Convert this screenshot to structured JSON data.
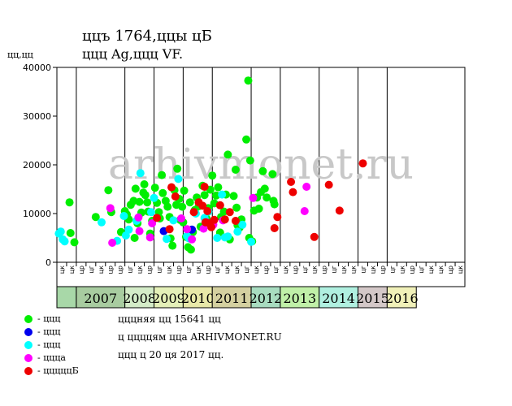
{
  "header": {
    "title_line1": "ццъ 1764,ццы цБ",
    "title_line2": "ццц Ag,ццц VF.",
    "y_unit": "цц,цц"
  },
  "watermark": "arhivmonet.ru",
  "legend": [
    {
      "label": "- ццц",
      "color": "#00ee00"
    },
    {
      "label": "- ццц",
      "color": "#0000ee"
    },
    {
      "label": "- ццц",
      "color": "#00ffff"
    },
    {
      "label": "- ццца",
      "color": "#ff00ff"
    },
    {
      "label": "- цццццБ",
      "color": "#ee0000"
    }
  ],
  "info": [
    "цццняя цц 15641 цц",
    "ц ццццям цца ARHIVMONET.RU",
    "ццц ц 20 ця 2017 цц."
  ],
  "chart_data": {
    "type": "scatter",
    "title": "ццъ 1764,ццы цБ — ццц Ag,ццц VF.",
    "ylabel": "цц,цц",
    "ylim": [
      0,
      40000
    ],
    "yticks": [
      0,
      10000,
      20000,
      30000,
      40000
    ],
    "x_range": [
      0,
      42
    ],
    "x_periods": [
      {
        "label": "",
        "start": 0,
        "end": 2,
        "color": "#a8d8a8"
      },
      {
        "label": "2007",
        "start": 2,
        "end": 7,
        "color": "#a8cca0"
      },
      {
        "label": "2008",
        "start": 7,
        "end": 10,
        "color": "#d4ecc8"
      },
      {
        "label": "2009",
        "start": 10,
        "end": 13,
        "color": "#e4f0b8"
      },
      {
        "label": "2010",
        "start": 13,
        "end": 16,
        "color": "#e8e8a8"
      },
      {
        "label": "2011",
        "start": 16,
        "end": 20,
        "color": "#d4d0a0"
      },
      {
        "label": "2012",
        "start": 20,
        "end": 23,
        "color": "#a8dcc0"
      },
      {
        "label": "2013",
        "start": 23,
        "end": 27,
        "color": "#c0f0a8"
      },
      {
        "label": "2014",
        "start": 27,
        "end": 31,
        "color": "#b0f0e0"
      },
      {
        "label": "2015",
        "start": 31,
        "end": 34,
        "color": "#d4c8c8"
      },
      {
        "label": "2016",
        "start": 34,
        "end": 37,
        "color": "#f0f0b8"
      }
    ],
    "x_subticks": [
      "цк",
      "цк",
      "цр",
      "цг",
      "цк",
      "цр",
      "цр",
      "цг",
      "цк",
      "цр",
      "цг",
      "цк",
      "цр",
      "цг",
      "цк",
      "цр",
      "цг",
      "цк",
      "цк",
      "цг",
      "цк",
      "цр",
      "цг",
      "цк",
      "цр",
      "цг",
      "цк",
      "цр",
      "цг",
      "цк",
      "цк",
      "цг",
      "цк",
      "цр",
      "цг",
      "цк",
      "цр",
      "цг",
      "цк",
      "цк",
      "цр",
      "цк"
    ],
    "series": [
      {
        "name": "- ццц",
        "color": "#00ee00",
        "points": [
          [
            1.3,
            12300
          ],
          [
            1.4,
            6000
          ],
          [
            1.8,
            4100
          ],
          [
            4.0,
            9300
          ],
          [
            5.3,
            14800
          ],
          [
            5.6,
            10300
          ],
          [
            6.6,
            6200
          ],
          [
            7.0,
            10500
          ],
          [
            7.2,
            9800
          ],
          [
            7.4,
            8800
          ],
          [
            7.6,
            11800
          ],
          [
            7.9,
            12600
          ],
          [
            8.0,
            5000
          ],
          [
            8.1,
            15100
          ],
          [
            8.3,
            8000
          ],
          [
            8.5,
            12400
          ],
          [
            8.7,
            10200
          ],
          [
            8.9,
            14300
          ],
          [
            9.0,
            16000
          ],
          [
            9.1,
            13800
          ],
          [
            9.3,
            12300
          ],
          [
            9.4,
            10400
          ],
          [
            9.6,
            5900
          ],
          [
            9.8,
            8500
          ],
          [
            10.1,
            15300
          ],
          [
            10.3,
            12200
          ],
          [
            10.5,
            10300
          ],
          [
            10.6,
            9000
          ],
          [
            10.8,
            17900
          ],
          [
            10.9,
            14200
          ],
          [
            11.2,
            12600
          ],
          [
            11.4,
            11400
          ],
          [
            11.6,
            9300
          ],
          [
            11.7,
            4900
          ],
          [
            11.9,
            3400
          ],
          [
            12.1,
            14800
          ],
          [
            12.3,
            11800
          ],
          [
            12.4,
            19200
          ],
          [
            12.6,
            13000
          ],
          [
            12.7,
            8700
          ],
          [
            12.9,
            11400
          ],
          [
            13.0,
            8200
          ],
          [
            13.1,
            14700
          ],
          [
            13.3,
            5200
          ],
          [
            13.5,
            3100
          ],
          [
            13.7,
            12300
          ],
          [
            13.8,
            2600
          ],
          [
            14.0,
            6200
          ],
          [
            14.2,
            10700
          ],
          [
            14.4,
            13300
          ],
          [
            14.6,
            11500
          ],
          [
            14.8,
            7300
          ],
          [
            15.0,
            15700
          ],
          [
            15.2,
            13800
          ],
          [
            15.4,
            9000
          ],
          [
            15.6,
            11100
          ],
          [
            15.8,
            14900
          ],
          [
            16.0,
            17800
          ],
          [
            16.2,
            12100
          ],
          [
            16.4,
            13700
          ],
          [
            16.6,
            15400
          ],
          [
            16.8,
            6100
          ],
          [
            16.9,
            9300
          ],
          [
            17.2,
            10400
          ],
          [
            17.4,
            13900
          ],
          [
            17.6,
            22100
          ],
          [
            17.8,
            4700
          ],
          [
            18.2,
            13600
          ],
          [
            18.4,
            19000
          ],
          [
            18.5,
            11200
          ],
          [
            18.6,
            7600
          ],
          [
            18.8,
            7100
          ],
          [
            19.0,
            8800
          ],
          [
            19.5,
            25200
          ],
          [
            19.7,
            37300
          ],
          [
            19.8,
            5000
          ],
          [
            19.9,
            20900
          ],
          [
            20.1,
            4300
          ],
          [
            20.3,
            10600
          ],
          [
            20.6,
            13300
          ],
          [
            20.8,
            11000
          ],
          [
            21.0,
            14400
          ],
          [
            21.2,
            18700
          ],
          [
            21.4,
            15100
          ],
          [
            21.6,
            13300
          ],
          [
            22.2,
            18100
          ],
          [
            22.3,
            12600
          ],
          [
            22.4,
            11900
          ]
        ]
      },
      {
        "name": "- ццц",
        "color": "#0000ee",
        "points": [
          [
            11.0,
            6400
          ],
          [
            13.9,
            6700
          ]
        ]
      },
      {
        "name": "- ццц",
        "color": "#00ffff",
        "points": [
          [
            0.2,
            5900
          ],
          [
            0.4,
            6300
          ],
          [
            0.6,
            4700
          ],
          [
            0.8,
            4300
          ],
          [
            4.6,
            8200
          ],
          [
            6.2,
            4400
          ],
          [
            6.9,
            9500
          ],
          [
            7.1,
            5500
          ],
          [
            7.4,
            6700
          ],
          [
            8.2,
            8500
          ],
          [
            8.6,
            18300
          ],
          [
            9.7,
            10300
          ],
          [
            10.0,
            13200
          ],
          [
            11.3,
            4800
          ],
          [
            12.0,
            8600
          ],
          [
            12.5,
            17100
          ],
          [
            13.4,
            5400
          ],
          [
            13.6,
            4900
          ],
          [
            14.3,
            10000
          ],
          [
            15.2,
            9100
          ],
          [
            15.6,
            10400
          ],
          [
            16.5,
            5000
          ],
          [
            17.0,
            13900
          ],
          [
            17.3,
            5100
          ],
          [
            17.6,
            5300
          ],
          [
            18.6,
            6300
          ],
          [
            19.1,
            7700
          ],
          [
            20.0,
            4200
          ]
        ]
      },
      {
        "name": "- ццца",
        "color": "#ff00ff",
        "points": [
          [
            5.5,
            11100
          ],
          [
            5.7,
            4000
          ],
          [
            8.4,
            9200
          ],
          [
            8.5,
            6400
          ],
          [
            9.6,
            5100
          ],
          [
            9.8,
            8000
          ],
          [
            12.8,
            9000
          ],
          [
            13.4,
            6800
          ],
          [
            13.9,
            4700
          ],
          [
            15.1,
            6900
          ],
          [
            15.4,
            8200
          ],
          [
            16.1,
            7700
          ],
          [
            17.1,
            8600
          ],
          [
            20.2,
            13200
          ],
          [
            25.5,
            10500
          ],
          [
            25.7,
            15500
          ]
        ]
      },
      {
        "name": "- цццццБ",
        "color": "#ee0000",
        "points": [
          [
            10.3,
            9100
          ],
          [
            11.6,
            6800
          ],
          [
            11.8,
            15400
          ],
          [
            12.2,
            13500
          ],
          [
            14.1,
            10300
          ],
          [
            14.6,
            12300
          ],
          [
            15.0,
            11600
          ],
          [
            15.2,
            15500
          ],
          [
            15.3,
            8200
          ],
          [
            15.5,
            10500
          ],
          [
            15.7,
            8000
          ],
          [
            15.9,
            7200
          ],
          [
            16.2,
            8700
          ],
          [
            16.8,
            11700
          ],
          [
            17.3,
            8800
          ],
          [
            17.8,
            10300
          ],
          [
            18.4,
            8500
          ],
          [
            22.4,
            7000
          ],
          [
            22.7,
            9300
          ],
          [
            24.1,
            16500
          ],
          [
            24.3,
            14400
          ],
          [
            26.5,
            5200
          ],
          [
            28.0,
            15900
          ],
          [
            29.1,
            10600
          ],
          [
            31.5,
            20300
          ]
        ]
      }
    ]
  }
}
